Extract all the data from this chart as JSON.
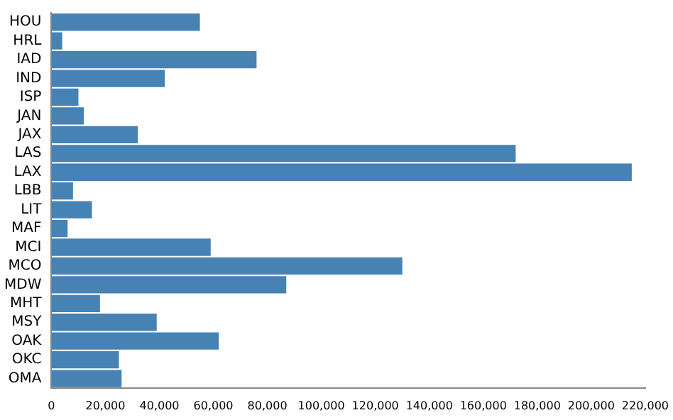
{
  "chart_data": {
    "type": "bar",
    "orientation": "horizontal",
    "categories": [
      "HOU",
      "HRL",
      "IAD",
      "IND",
      "ISP",
      "JAN",
      "JAX",
      "LAS",
      "LAX",
      "LBB",
      "LIT",
      "MAF",
      "MCI",
      "MCO",
      "MDW",
      "MHT",
      "MSY",
      "OAK",
      "OKC",
      "OMA"
    ],
    "values": [
      55000,
      4000,
      76000,
      42000,
      10000,
      12000,
      32000,
      172000,
      215000,
      8000,
      15000,
      6000,
      59000,
      130000,
      87000,
      18000,
      39000,
      62000,
      25000,
      26000
    ],
    "color": "#4682b4",
    "xlim": [
      0,
      220000
    ],
    "xticks": [
      {
        "value": 0,
        "label": "0"
      },
      {
        "value": 20000,
        "label": "20,000"
      },
      {
        "value": 40000,
        "label": "40,000"
      },
      {
        "value": 60000,
        "label": "60,000"
      },
      {
        "value": 80000,
        "label": "80,000"
      },
      {
        "value": 100000,
        "label": "100,000"
      },
      {
        "value": 120000,
        "label": "120,000"
      },
      {
        "value": 140000,
        "label": "140,000"
      },
      {
        "value": 160000,
        "label": "160,000"
      },
      {
        "value": 180000,
        "label": "180,000"
      },
      {
        "value": 200000,
        "label": "200,000"
      },
      {
        "value": 220000,
        "label": "220,000"
      }
    ],
    "grid": false,
    "legend": false
  }
}
